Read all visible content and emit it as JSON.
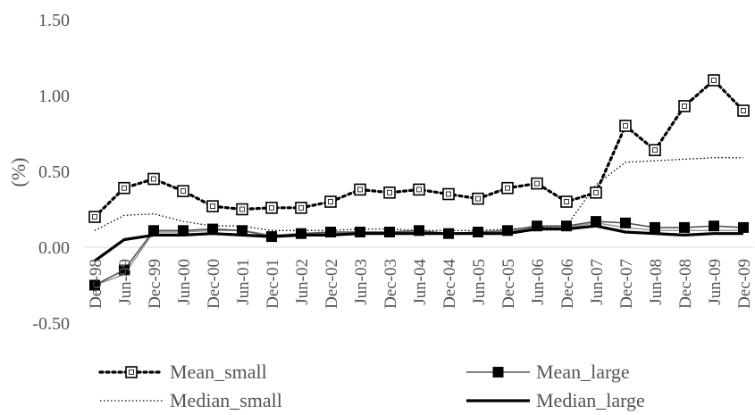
{
  "chart_data": {
    "type": "line",
    "title": "",
    "xlabel": "",
    "ylabel": "(%)",
    "ylim": [
      -0.5,
      1.5
    ],
    "yticks": [
      "1.50",
      "1.00",
      "0.50",
      "0.00",
      "-0.50"
    ],
    "yticks_values": [
      1.5,
      1.0,
      0.5,
      0.0,
      -0.5
    ],
    "grid": false,
    "legend_position": "bottom",
    "categories": [
      "Dec-98",
      "Jun-99",
      "Dec-99",
      "Jun-00",
      "Dec-00",
      "Jun-01",
      "Dec-01",
      "Jun-02",
      "Dec-02",
      "Jun-03",
      "Dec-03",
      "Jun-04",
      "Dec-04",
      "Jun-05",
      "Dec-05",
      "Jun-06",
      "Dec-06",
      "Jun-07",
      "Dec-07",
      "Jun-08",
      "Dec-08",
      "Jun-09",
      "Dec-09"
    ],
    "series": [
      {
        "name": "Mean_small",
        "style": "dotted-square-open",
        "color": "#000000",
        "values": [
          0.2,
          0.39,
          0.45,
          0.37,
          0.27,
          0.25,
          0.26,
          0.26,
          0.3,
          0.38,
          0.36,
          0.38,
          0.35,
          0.32,
          0.39,
          0.42,
          0.3,
          0.36,
          0.8,
          0.64,
          0.93,
          1.1,
          0.9
        ]
      },
      {
        "name": "Mean_large",
        "style": "solid-square-filled",
        "color": "#555555",
        "values": [
          -0.25,
          -0.15,
          0.11,
          0.11,
          0.12,
          0.11,
          0.07,
          0.09,
          0.1,
          0.1,
          0.1,
          0.11,
          0.09,
          0.1,
          0.11,
          0.14,
          0.14,
          0.17,
          0.16,
          0.13,
          0.13,
          0.14,
          0.13
        ]
      },
      {
        "name": "Median_small",
        "style": "thin-dotted",
        "color": "#000000",
        "values": [
          0.11,
          0.21,
          0.22,
          0.17,
          0.14,
          0.14,
          0.11,
          0.11,
          0.11,
          0.12,
          0.12,
          0.11,
          0.11,
          0.11,
          0.12,
          0.13,
          0.14,
          0.41,
          0.56,
          0.57,
          0.58,
          0.59,
          0.59
        ]
      },
      {
        "name": "Median_large",
        "style": "thick-solid",
        "color": "#000000",
        "values": [
          -0.09,
          0.05,
          0.08,
          0.08,
          0.09,
          0.08,
          0.07,
          0.08,
          0.08,
          0.09,
          0.09,
          0.09,
          0.09,
          0.09,
          0.09,
          0.12,
          0.12,
          0.14,
          0.1,
          0.09,
          0.08,
          0.09,
          0.09
        ]
      }
    ],
    "extra_lines": [
      {
        "color": "#999999",
        "values": [
          -0.25,
          -0.18,
          0.1,
          0.1,
          0.11,
          0.11,
          0.08,
          0.09,
          0.09,
          0.1,
          0.1,
          0.1,
          0.09,
          0.1,
          0.1,
          0.13,
          0.13,
          0.16,
          0.13,
          0.11,
          0.11,
          0.11,
          0.11
        ]
      }
    ]
  }
}
